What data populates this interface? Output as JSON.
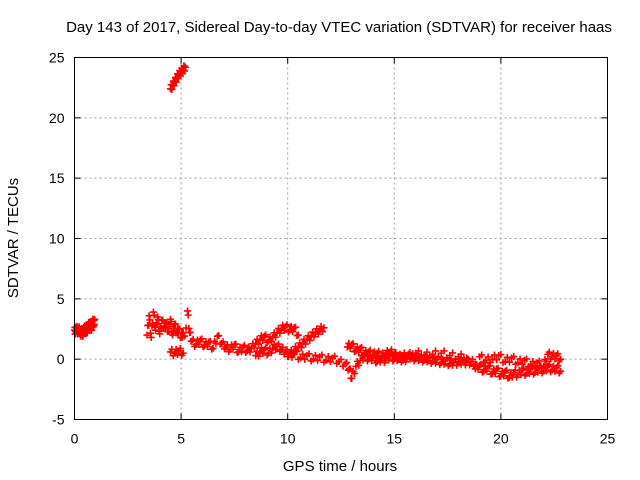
{
  "chart_data": {
    "type": "scatter",
    "title": "Day 143 of 2017, Sidereal Day-to-day VTEC variation (SDTVAR) for receiver haas",
    "xlabel": "GPS time / hours",
    "ylabel": "SDTVAR / TECUs",
    "xlim": [
      0,
      25
    ],
    "ylim": [
      -5,
      25
    ],
    "xticks": [
      0,
      5,
      10,
      15,
      20,
      25
    ],
    "yticks": [
      -5,
      0,
      5,
      10,
      15,
      20,
      25
    ],
    "grid": true,
    "marker": "+",
    "color": "#ff0000",
    "series": [
      {
        "name": "SDTVAR",
        "segments": [
          [
            [
              0.0,
              2.4
            ],
            [
              0.05,
              2.3
            ],
            [
              0.1,
              2.6
            ],
            [
              0.15,
              2.2
            ],
            [
              0.2,
              2.5
            ],
            [
              0.25,
              2.3
            ],
            [
              0.3,
              2.1
            ],
            [
              0.35,
              2.4
            ],
            [
              0.4,
              2.0
            ],
            [
              0.45,
              2.6
            ],
            [
              0.5,
              2.3
            ],
            [
              0.55,
              2.8
            ],
            [
              0.6,
              2.2
            ],
            [
              0.65,
              2.9
            ],
            [
              0.7,
              2.6
            ],
            [
              0.75,
              3.1
            ],
            [
              0.8,
              2.4
            ],
            [
              0.85,
              3.2
            ],
            [
              0.9,
              2.8
            ],
            [
              0.95,
              3.3
            ]
          ],
          [
            [
              4.5,
              22.4
            ],
            [
              4.6,
              22.7
            ],
            [
              4.7,
              23.0
            ],
            [
              4.8,
              23.3
            ],
            [
              4.9,
              23.6
            ],
            [
              5.0,
              23.8
            ],
            [
              5.1,
              24.0
            ],
            [
              5.2,
              24.2
            ]
          ],
          [
            [
              3.4,
              2.0
            ],
            [
              3.5,
              3.6
            ],
            [
              3.6,
              1.8
            ],
            [
              3.7,
              3.9
            ],
            [
              3.8,
              2.4
            ],
            [
              3.9,
              3.5
            ],
            [
              4.0,
              2.1
            ],
            [
              4.1,
              3.2
            ],
            [
              4.2,
              2.6
            ],
            [
              4.3,
              3.0
            ],
            [
              4.4,
              2.3
            ],
            [
              4.5,
              3.3
            ],
            [
              4.6,
              2.0
            ],
            [
              4.7,
              2.9
            ],
            [
              4.8,
              2.2
            ],
            [
              4.9,
              2.5
            ],
            [
              5.0,
              1.8
            ],
            [
              5.1,
              2.2
            ]
          ],
          [
            [
              4.5,
              0.6
            ],
            [
              4.7,
              0.5
            ],
            [
              4.9,
              0.7
            ],
            [
              5.1,
              0.5
            ],
            [
              5.3,
              4.0
            ],
            [
              5.4,
              2.2
            ],
            [
              5.5,
              1.5
            ],
            [
              5.7,
              1.2
            ],
            [
              5.9,
              1.6
            ],
            [
              6.1,
              1.1
            ],
            [
              6.3,
              1.4
            ],
            [
              6.5,
              0.9
            ],
            [
              6.7,
              1.9
            ],
            [
              6.9,
              1.3
            ],
            [
              7.1,
              1.0
            ],
            [
              7.3,
              0.8
            ],
            [
              7.5,
              1.2
            ],
            [
              7.7,
              0.6
            ],
            [
              7.9,
              1.0
            ],
            [
              8.1,
              0.7
            ],
            [
              8.3,
              0.9
            ],
            [
              8.5,
              1.3
            ],
            [
              8.7,
              1.6
            ],
            [
              8.9,
              1.9
            ],
            [
              9.1,
              1.5
            ],
            [
              9.3,
              1.8
            ],
            [
              9.5,
              2.2
            ],
            [
              9.7,
              2.5
            ],
            [
              9.9,
              2.7
            ],
            [
              10.1,
              2.4
            ],
            [
              10.3,
              2.6
            ],
            [
              10.5,
              2.0
            ]
          ],
          [
            [
              8.5,
              0.3
            ],
            [
              8.7,
              0.6
            ],
            [
              8.9,
              0.8
            ],
            [
              9.1,
              0.5
            ],
            [
              9.3,
              0.9
            ],
            [
              9.5,
              1.1
            ],
            [
              9.7,
              0.8
            ],
            [
              9.9,
              0.6
            ],
            [
              10.1,
              0.4
            ],
            [
              10.3,
              0.7
            ],
            [
              10.5,
              1.0
            ],
            [
              10.7,
              1.3
            ],
            [
              10.9,
              1.6
            ],
            [
              11.1,
              1.9
            ],
            [
              11.3,
              2.2
            ],
            [
              11.5,
              2.4
            ],
            [
              11.7,
              2.6
            ]
          ],
          [
            [
              10.0,
              0.2
            ],
            [
              10.3,
              0.5
            ],
            [
              10.6,
              0.1
            ],
            [
              10.9,
              0.3
            ],
            [
              11.2,
              0.0
            ],
            [
              11.5,
              0.2
            ],
            [
              11.8,
              -0.1
            ],
            [
              12.1,
              0.1
            ],
            [
              12.4,
              -0.2
            ],
            [
              12.7,
              -0.4
            ],
            [
              12.9,
              -0.8
            ],
            [
              13.0,
              -1.6
            ],
            [
              13.2,
              -0.6
            ],
            [
              13.4,
              -0.1
            ],
            [
              13.6,
              0.3
            ],
            [
              13.8,
              0.0
            ],
            [
              14.0,
              0.2
            ],
            [
              14.2,
              -0.2
            ],
            [
              14.4,
              0.1
            ],
            [
              14.6,
              -0.1
            ],
            [
              14.8,
              0.3
            ],
            [
              15.0,
              0.0
            ],
            [
              15.2,
              0.2
            ],
            [
              15.4,
              -0.1
            ],
            [
              15.6,
              0.1
            ],
            [
              15.8,
              0.3
            ],
            [
              16.0,
              0.0
            ],
            [
              16.2,
              0.2
            ],
            [
              16.4,
              -0.1
            ],
            [
              16.6,
              0.1
            ],
            [
              16.8,
              -0.2
            ],
            [
              17.0,
              0.0
            ],
            [
              17.2,
              -0.3
            ],
            [
              17.4,
              -0.1
            ],
            [
              17.6,
              -0.4
            ],
            [
              17.8,
              -0.2
            ],
            [
              18.0,
              -0.3
            ],
            [
              18.2,
              -0.1
            ],
            [
              18.4,
              -0.3
            ],
            [
              18.6,
              -0.2
            ],
            [
              18.8,
              -0.4
            ]
          ],
          [
            [
              12.8,
              1.0
            ],
            [
              13.0,
              1.2
            ],
            [
              13.2,
              0.7
            ],
            [
              13.4,
              0.9
            ],
            [
              13.6,
              0.4
            ],
            [
              13.8,
              0.6
            ],
            [
              14.0,
              0.3
            ],
            [
              14.2,
              0.5
            ],
            [
              14.4,
              0.2
            ],
            [
              14.6,
              0.4
            ],
            [
              14.8,
              0.6
            ],
            [
              15.0,
              0.4
            ],
            [
              15.2,
              0.1
            ],
            [
              15.4,
              0.3
            ],
            [
              15.6,
              0.2
            ],
            [
              16.0,
              0.5
            ],
            [
              16.4,
              0.3
            ],
            [
              16.8,
              0.4
            ],
            [
              17.2,
              0.5
            ],
            [
              17.6,
              0.3
            ],
            [
              18.0,
              0.2
            ],
            [
              18.4,
              0.1
            ]
          ],
          [
            [
              18.8,
              -0.8
            ],
            [
              19.0,
              -0.5
            ],
            [
              19.2,
              -1.0
            ],
            [
              19.4,
              -0.6
            ],
            [
              19.6,
              -1.2
            ],
            [
              19.8,
              -0.8
            ],
            [
              20.0,
              -1.4
            ],
            [
              20.2,
              -1.0
            ],
            [
              20.4,
              -1.5
            ],
            [
              20.6,
              -1.1
            ],
            [
              20.8,
              -1.3
            ],
            [
              21.0,
              -0.9
            ],
            [
              21.2,
              -1.2
            ],
            [
              21.4,
              -0.8
            ],
            [
              21.6,
              -1.1
            ],
            [
              21.8,
              -0.7
            ],
            [
              22.0,
              -1.0
            ],
            [
              22.2,
              -0.6
            ],
            [
              22.4,
              -0.9
            ],
            [
              22.6,
              -0.7
            ],
            [
              22.8,
              -1.0
            ]
          ],
          [
            [
              19.0,
              0.2
            ],
            [
              19.3,
              -0.1
            ],
            [
              19.6,
              0.0
            ],
            [
              19.9,
              0.3
            ],
            [
              20.2,
              -0.2
            ],
            [
              20.5,
              0.1
            ],
            [
              20.8,
              -0.3
            ],
            [
              21.1,
              -0.1
            ],
            [
              21.4,
              -0.5
            ],
            [
              21.7,
              -0.3
            ],
            [
              22.0,
              -0.6
            ],
            [
              22.2,
              0.4
            ],
            [
              22.4,
              0.2
            ],
            [
              22.6,
              0.3
            ],
            [
              22.8,
              0.0
            ]
          ]
        ]
      }
    ]
  }
}
